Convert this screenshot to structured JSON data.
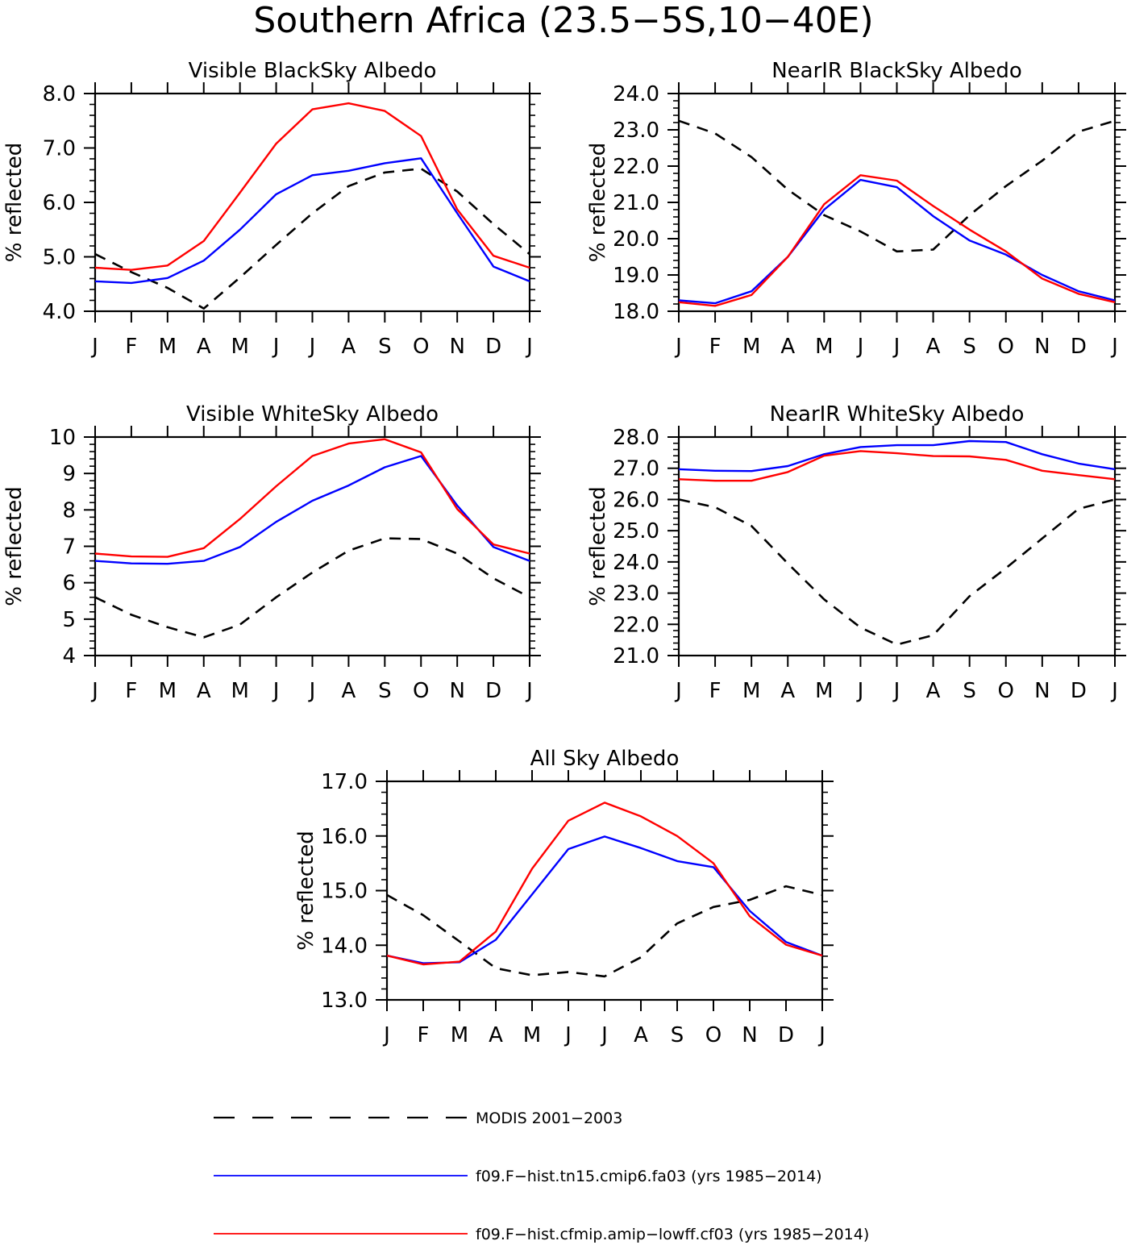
{
  "figure": {
    "title": "Southern Africa (23.5−5S,10−40E)"
  },
  "legend": [
    {
      "name": "MODIS 2001−2003",
      "color": "#000000",
      "style": "dashed"
    },
    {
      "name": "f09.F−hist.tn15.cmip6.fa03 (yrs 1985−2014)",
      "color": "#0000ff",
      "style": "solid"
    },
    {
      "name": "f09.F−hist.cfmip.amip−lowff.cf03 (yrs 1985−2014)",
      "color": "#ff0000",
      "style": "solid"
    }
  ],
  "chart_data": [
    {
      "type": "line",
      "title": "Visible BlackSky Albedo",
      "ylabel": "% reflected",
      "categories": [
        "J",
        "F",
        "M",
        "A",
        "M",
        "J",
        "J",
        "A",
        "S",
        "O",
        "N",
        "D",
        "J"
      ],
      "ylim": [
        4.0,
        8.0
      ],
      "yticks": [
        "4.0",
        "5.0",
        "6.0",
        "7.0",
        "8.0"
      ],
      "series": [
        {
          "values": [
            5.05,
            4.72,
            4.43,
            4.05,
            4.62,
            5.22,
            5.8,
            6.3,
            6.55,
            6.62,
            6.2,
            5.6,
            5.05
          ]
        },
        {
          "values": [
            4.55,
            4.52,
            4.61,
            4.93,
            5.5,
            6.15,
            6.5,
            6.58,
            6.72,
            6.81,
            5.8,
            4.82,
            4.55
          ]
        },
        {
          "values": [
            4.8,
            4.76,
            4.84,
            5.29,
            6.18,
            7.08,
            7.71,
            7.82,
            7.68,
            7.22,
            5.87,
            5.02,
            4.8
          ]
        }
      ]
    },
    {
      "type": "line",
      "title": "NearIR BlackSky Albedo",
      "ylabel": "% reflected",
      "categories": [
        "J",
        "F",
        "M",
        "A",
        "M",
        "J",
        "J",
        "A",
        "S",
        "O",
        "N",
        "D",
        "J"
      ],
      "ylim": [
        18.0,
        24.0
      ],
      "yticks": [
        "18.0",
        "19.0",
        "20.0",
        "21.0",
        "22.0",
        "23.0",
        "24.0"
      ],
      "series": [
        {
          "values": [
            23.25,
            22.9,
            22.25,
            21.35,
            20.65,
            20.2,
            19.65,
            19.7,
            20.65,
            21.45,
            22.15,
            22.95,
            23.25
          ]
        },
        {
          "values": [
            18.3,
            18.22,
            18.55,
            19.5,
            20.8,
            21.62,
            21.42,
            20.62,
            19.95,
            19.56,
            19.0,
            18.55,
            18.3
          ]
        },
        {
          "values": [
            18.25,
            18.15,
            18.45,
            19.5,
            20.95,
            21.75,
            21.6,
            20.9,
            20.25,
            19.65,
            18.9,
            18.48,
            18.25
          ]
        }
      ]
    },
    {
      "type": "line",
      "title": "Visible WhiteSky Albedo",
      "ylabel": "% reflected",
      "categories": [
        "J",
        "F",
        "M",
        "A",
        "M",
        "J",
        "J",
        "A",
        "S",
        "O",
        "N",
        "D",
        "J"
      ],
      "ylim": [
        4,
        10
      ],
      "yticks": [
        "4",
        "5",
        "6",
        "7",
        "8",
        "9",
        "10"
      ],
      "series": [
        {
          "values": [
            5.6,
            5.12,
            4.78,
            4.5,
            4.85,
            5.6,
            6.28,
            6.88,
            7.22,
            7.2,
            6.8,
            6.12,
            5.6
          ]
        },
        {
          "values": [
            6.6,
            6.53,
            6.52,
            6.6,
            6.98,
            7.67,
            8.25,
            8.67,
            9.17,
            9.48,
            8.12,
            6.98,
            6.6
          ]
        },
        {
          "values": [
            6.8,
            6.72,
            6.71,
            6.95,
            7.75,
            8.65,
            9.48,
            9.82,
            9.94,
            9.58,
            8.02,
            7.05,
            6.8
          ]
        }
      ]
    },
    {
      "type": "line",
      "title": "NearIR WhiteSky Albedo",
      "ylabel": "% reflected",
      "categories": [
        "J",
        "F",
        "M",
        "A",
        "M",
        "J",
        "J",
        "A",
        "S",
        "O",
        "N",
        "D",
        "J"
      ],
      "ylim": [
        21.0,
        28.0
      ],
      "yticks": [
        "21.0",
        "22.0",
        "23.0",
        "24.0",
        "25.0",
        "26.0",
        "27.0",
        "28.0"
      ],
      "series": [
        {
          "values": [
            26.0,
            25.75,
            25.15,
            23.95,
            22.8,
            21.9,
            21.35,
            21.65,
            22.9,
            23.8,
            24.75,
            25.7,
            26.0
          ]
        },
        {
          "values": [
            26.97,
            26.92,
            26.91,
            27.07,
            27.45,
            27.68,
            27.74,
            27.74,
            27.87,
            27.84,
            27.45,
            27.15,
            26.97
          ]
        },
        {
          "values": [
            26.65,
            26.6,
            26.6,
            26.88,
            27.4,
            27.55,
            27.48,
            27.39,
            27.38,
            27.27,
            26.92,
            26.78,
            26.65
          ]
        }
      ]
    },
    {
      "type": "line",
      "title": "All Sky Albedo",
      "ylabel": "% reflected",
      "categories": [
        "J",
        "F",
        "M",
        "A",
        "M",
        "J",
        "J",
        "A",
        "S",
        "O",
        "N",
        "D",
        "J"
      ],
      "ylim": [
        13.0,
        17.0
      ],
      "yticks": [
        "13.0",
        "14.0",
        "15.0",
        "16.0",
        "17.0"
      ],
      "series": [
        {
          "values": [
            14.92,
            14.55,
            14.07,
            13.58,
            13.45,
            13.51,
            13.43,
            13.78,
            14.4,
            14.7,
            14.83,
            15.08,
            14.92
          ]
        },
        {
          "values": [
            13.81,
            13.67,
            13.69,
            14.1,
            14.93,
            15.76,
            15.99,
            15.78,
            15.54,
            15.43,
            14.63,
            14.06,
            13.81
          ]
        },
        {
          "values": [
            13.81,
            13.65,
            13.7,
            14.25,
            15.4,
            16.28,
            16.61,
            16.36,
            16.0,
            15.5,
            14.53,
            14.01,
            13.81
          ]
        }
      ]
    }
  ]
}
